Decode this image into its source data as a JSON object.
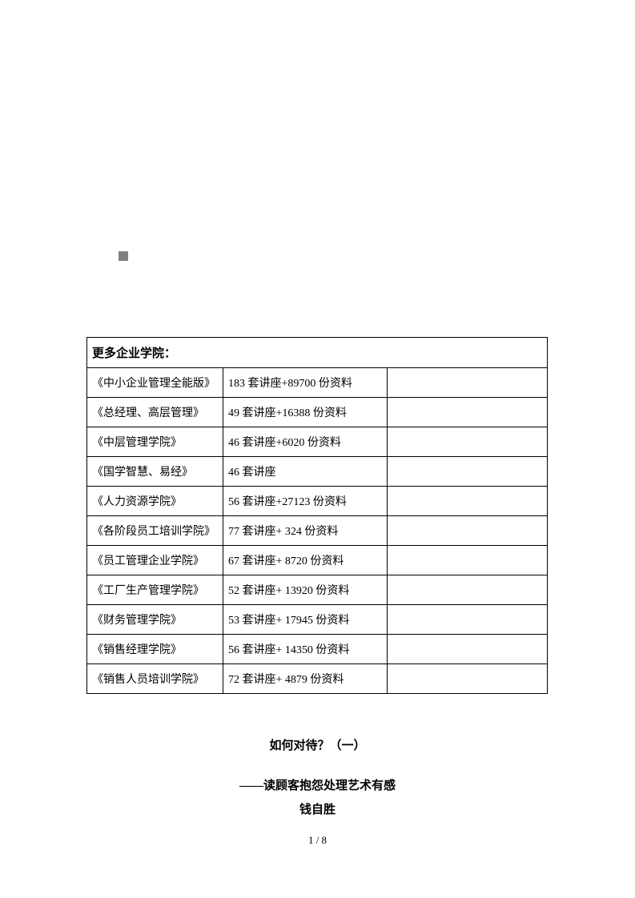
{
  "table": {
    "header": "更多企业学院：",
    "rows": [
      {
        "col1": "《中小企业管理全能版》",
        "col2": "183 套讲座+89700 份资料",
        "col3": ""
      },
      {
        "col1": "《总经理、高层管理》",
        "col2": "49 套讲座+16388 份资料",
        "col3": ""
      },
      {
        "col1": "《中层管理学院》",
        "col2": "46 套讲座+6020 份资料",
        "col3": ""
      },
      {
        "col1": "《国学智慧、易经》",
        "col2": "46 套讲座",
        "col3": ""
      },
      {
        "col1": "《人力资源学院》",
        "col2": "56 套讲座+27123 份资料",
        "col3": ""
      },
      {
        "col1": "《各阶段员工培训学院》",
        "col2": "77 套讲座+ 324 份资料",
        "col3": ""
      },
      {
        "col1": "《员工管理企业学院》",
        "col2": "67 套讲座+ 8720 份资料",
        "col3": ""
      },
      {
        "col1": "《工厂生产管理学院》",
        "col2": "52 套讲座+ 13920 份资料",
        "col3": ""
      },
      {
        "col1": "《财务管理学院》",
        "col2": "53 套讲座+ 17945 份资料",
        "col3": ""
      },
      {
        "col1": "《销售经理学院》",
        "col2": "56 套讲座+ 14350 份资料",
        "col3": ""
      },
      {
        "col1": "《销售人员培训学院》",
        "col2": "72 套讲座+ 4879 份资料",
        "col3": ""
      }
    ]
  },
  "article": {
    "title": "如何对待？（一）",
    "subtitle": "——读顾客抱怨处理艺术有感",
    "author": "钱自胜"
  },
  "pageNumber": "1 / 8"
}
